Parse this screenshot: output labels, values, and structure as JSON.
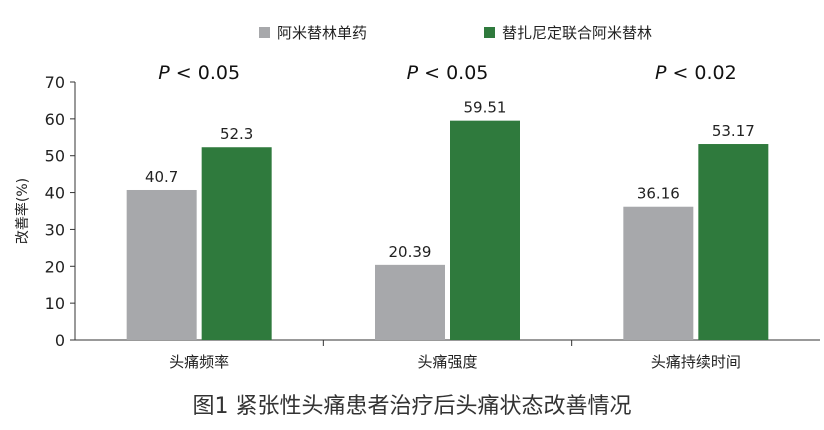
{
  "chart_data": {
    "type": "bar",
    "categories": [
      "头痛频率",
      "头痛强度",
      "头痛持续时间"
    ],
    "series": [
      {
        "name": "阿米替林单药",
        "color": "#a7a8ab",
        "values": [
          40.7,
          20.39,
          36.16
        ]
      },
      {
        "name": "替扎尼定联合阿米替林",
        "color": "#2f7a3d",
        "values": [
          52.3,
          59.51,
          53.17
        ]
      }
    ],
    "data_labels": [
      [
        "40.7",
        "20.39",
        "36.16"
      ],
      [
        "52.3",
        "59.51",
        "53.17"
      ]
    ],
    "annotations": [
      {
        "p_symbol": "P",
        "text": " < 0.05"
      },
      {
        "p_symbol": "P",
        "text": " < 0.05"
      },
      {
        "p_symbol": "P",
        "text": " < 0.02"
      }
    ],
    "ylabel": "改善率(%)",
    "ylim": [
      0,
      70
    ],
    "yticks": [
      0,
      10,
      20,
      30,
      40,
      50,
      60,
      70
    ],
    "grid": false,
    "legend_position": "top-center",
    "caption": "图1 紧张性头痛患者治疗后头痛状态改善情况"
  }
}
